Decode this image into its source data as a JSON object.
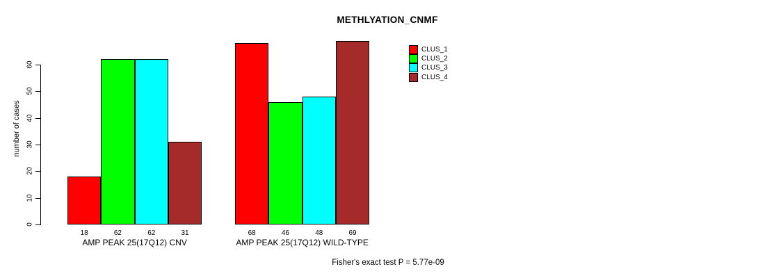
{
  "header": {
    "title": "METHLYATION_CNMF"
  },
  "chart_data": {
    "type": "bar",
    "title": "METHLYATION_CNMF",
    "xlabel": "",
    "ylabel": "number of cases",
    "ylim": [
      0,
      60
    ],
    "yticks": [
      0,
      10,
      20,
      30,
      40,
      50,
      60
    ],
    "grid": false,
    "legend_position": "top-right",
    "categories": [
      "AMP PEAK 25(17Q12) CNV",
      "AMP PEAK 25(17Q12) WILD-TYPE"
    ],
    "series": [
      {
        "name": "CLUS_1",
        "color": "#FF0000",
        "values": [
          18,
          68
        ]
      },
      {
        "name": "CLUS_2",
        "color": "#00FF00",
        "values": [
          62,
          46
        ]
      },
      {
        "name": "CLUS_3",
        "color": "#00FFFF",
        "values": [
          62,
          48
        ]
      },
      {
        "name": "CLUS_4",
        "color": "#A52A2A",
        "values": [
          31,
          69
        ]
      }
    ],
    "bar_value_labels": [
      [
        "18",
        "62",
        "62",
        "31"
      ],
      [
        "68",
        "46",
        "48",
        "69"
      ]
    ],
    "annotation": "Fisher's exact test P = 5.77e-09"
  },
  "legend": {
    "items": [
      {
        "label": "CLUS_1",
        "color": "#FF0000"
      },
      {
        "label": "CLUS_2",
        "color": "#00FF00"
      },
      {
        "label": "CLUS_3",
        "color": "#00FFFF"
      },
      {
        "label": "CLUS_4",
        "color": "#A52A2A"
      }
    ]
  },
  "footer": {
    "note": "Fisher's exact test P = 5.77e-09"
  }
}
